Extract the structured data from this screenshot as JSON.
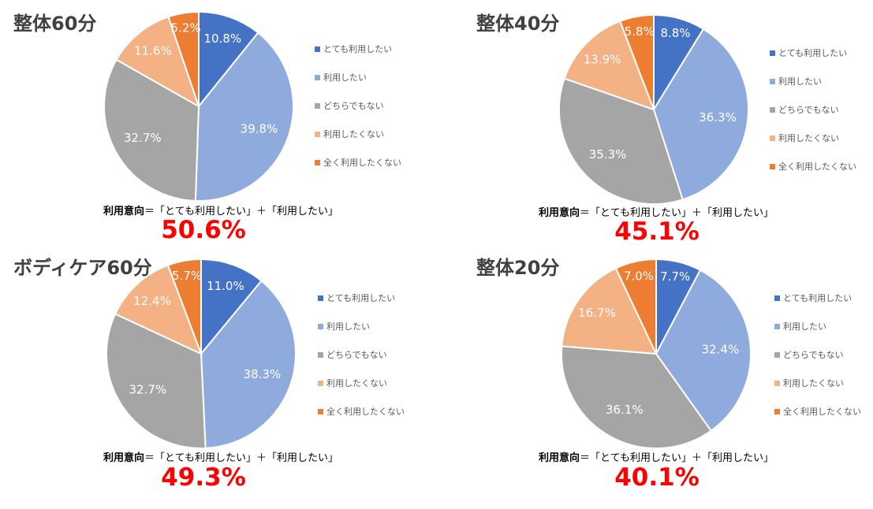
{
  "legend_categories": [
    "とても利用したい",
    "利用したい",
    "どちらでもない",
    "利用したくない",
    "全く利用したくない"
  ],
  "colors": [
    "#4472c4",
    "#8faadc",
    "#a5a5a5",
    "#f4b183",
    "#ed7d31"
  ],
  "formula": {
    "label": "利用意向",
    "expression": "＝「とても利用したい」＋「利用したい」"
  },
  "chart_data": [
    {
      "type": "pie",
      "title": "整体60分",
      "categories": [
        "とても利用したい",
        "利用したい",
        "どちらでもない",
        "利用したくない",
        "全く利用したくない"
      ],
      "values": [
        10.8,
        39.8,
        32.7,
        11.6,
        5.2
      ],
      "labels": [
        "10.8%",
        "39.8%",
        "32.7%",
        "11.6%",
        "5.2%"
      ],
      "legend": "right",
      "summary": "50.6%"
    },
    {
      "type": "pie",
      "title": "整体40分",
      "categories": [
        "とても利用したい",
        "利用したい",
        "どちらでもない",
        "利用したくない",
        "全く利用したくない"
      ],
      "values": [
        8.8,
        36.3,
        35.3,
        13.9,
        5.8
      ],
      "labels": [
        "8.8%",
        "36.3%",
        "35.3%",
        "13.9%",
        "5.8%"
      ],
      "legend": "right",
      "summary": "45.1%"
    },
    {
      "type": "pie",
      "title": "ボディケア60分",
      "categories": [
        "とても利用したい",
        "利用したい",
        "どちらでもない",
        "利用したくない",
        "全く利用したくない"
      ],
      "values": [
        11.0,
        38.3,
        32.7,
        12.4,
        5.7
      ],
      "labels": [
        "11.0%",
        "38.3%",
        "32.7%",
        "12.4%",
        "5.7%"
      ],
      "legend": "right",
      "summary": "49.3%"
    },
    {
      "type": "pie",
      "title": "整体20分",
      "categories": [
        "とても利用したい",
        "利用したい",
        "どちらでもない",
        "利用したくない",
        "全く利用したくない"
      ],
      "values": [
        7.7,
        32.4,
        36.1,
        16.7,
        7.0
      ],
      "labels": [
        "7.7%",
        "32.4%",
        "36.1%",
        "16.7%",
        "7.0%"
      ],
      "legend": "right",
      "summary": "40.1%"
    }
  ]
}
